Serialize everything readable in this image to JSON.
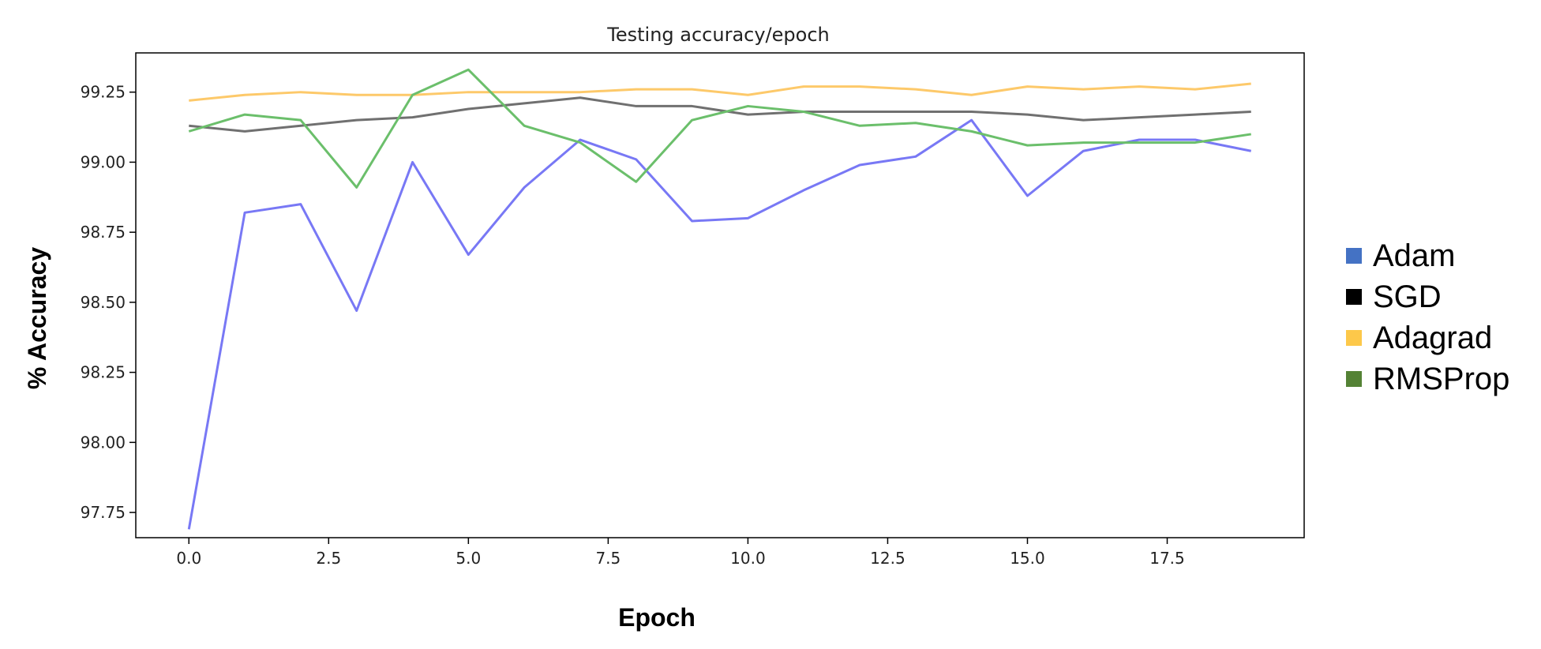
{
  "chart_data": {
    "type": "line",
    "title": "Testing accuracy/epoch",
    "xlabel": "Epoch",
    "ylabel": "% Accuracy",
    "xlim": [
      -0.95,
      19.95
    ],
    "ylim": [
      97.66,
      99.39
    ],
    "xticks": [
      "0.0",
      "2.5",
      "5.0",
      "7.5",
      "10.0",
      "12.5",
      "15.0",
      "17.5"
    ],
    "yticks": [
      "97.75",
      "98.00",
      "98.25",
      "98.50",
      "98.75",
      "99.00",
      "99.25"
    ],
    "x": [
      0,
      1,
      2,
      3,
      4,
      5,
      6,
      7,
      8,
      9,
      10,
      11,
      12,
      13,
      14,
      15,
      16,
      17,
      18,
      19
    ],
    "grid": false,
    "legend_position": "right, outside plot",
    "series": [
      {
        "name": "Adam",
        "line_color": "#7878f5",
        "legend_color": "#4472c4",
        "values": [
          97.69,
          98.82,
          98.85,
          98.47,
          99.0,
          98.67,
          98.91,
          99.08,
          99.01,
          98.79,
          98.8,
          98.9,
          98.99,
          99.02,
          99.15,
          98.88,
          99.04,
          99.08,
          99.08,
          99.04
        ]
      },
      {
        "name": "SGD",
        "line_color": "#707070",
        "legend_color": "#000000",
        "values": [
          99.13,
          99.11,
          99.13,
          99.15,
          99.16,
          99.19,
          99.21,
          99.23,
          99.2,
          99.2,
          99.17,
          99.18,
          99.18,
          99.18,
          99.18,
          99.17,
          99.15,
          99.16,
          99.17,
          99.18
        ]
      },
      {
        "name": "Adagrad",
        "line_color": "#fdc96a",
        "legend_color": "#fdc84a",
        "values": [
          99.22,
          99.24,
          99.25,
          99.24,
          99.24,
          99.25,
          99.25,
          99.25,
          99.26,
          99.26,
          99.24,
          99.27,
          99.27,
          99.26,
          99.24,
          99.27,
          99.26,
          99.27,
          99.26,
          99.28
        ]
      },
      {
        "name": "RMSProp",
        "line_color": "#6bbf6b",
        "legend_color": "#548235",
        "values": [
          99.11,
          99.17,
          99.15,
          98.91,
          99.24,
          99.33,
          99.13,
          99.07,
          98.93,
          99.15,
          99.2,
          99.18,
          99.13,
          99.14,
          99.11,
          99.06,
          99.07,
          99.07,
          99.07,
          99.1
        ]
      }
    ]
  }
}
